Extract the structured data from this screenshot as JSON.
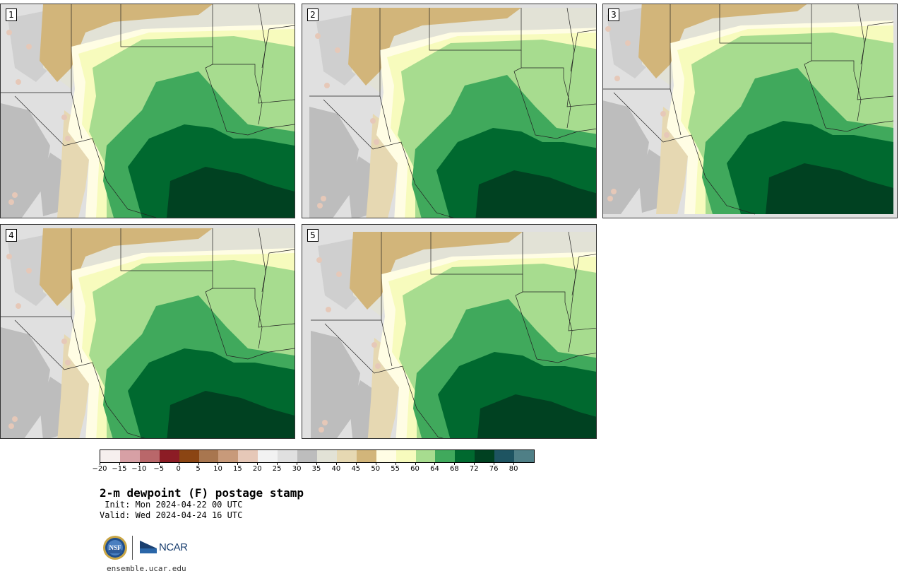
{
  "panels": [
    {
      "label": "1"
    },
    {
      "label": "2"
    },
    {
      "label": "3"
    },
    {
      "label": "4"
    },
    {
      "label": "5"
    }
  ],
  "colorbar": {
    "colors": [
      "#f6efee",
      "#d7a0a5",
      "#b9676a",
      "#8c1c25",
      "#8b4513",
      "#a8764f",
      "#c89a7a",
      "#e6c8b8",
      "#f2f2f2",
      "#e0e0e0",
      "#bdbdbd",
      "#e2e2d6",
      "#e6d8b2",
      "#d2b57a",
      "#fffde4",
      "#f7fbbd",
      "#a7dc8f",
      "#40a95c",
      "#00692f",
      "#004121",
      "#1e5461",
      "#4f7f86"
    ],
    "ticks": [
      "-20",
      "-15",
      "-10",
      "-5",
      "0",
      "5",
      "10",
      "15",
      "20",
      "25",
      "30",
      "35",
      "40",
      "45",
      "50",
      "55",
      "60",
      "64",
      "68",
      "72",
      "76",
      "80"
    ]
  },
  "title": "2-m dewpoint (F) postage stamp",
  "init": " Init: Mon 2024-04-22 00 UTC",
  "valid": "Valid: Wed 2024-04-24 16 UTC",
  "logo": {
    "nsf": "NSF",
    "ncar": "NCAR"
  },
  "url": "ensemble.ucar.edu"
}
